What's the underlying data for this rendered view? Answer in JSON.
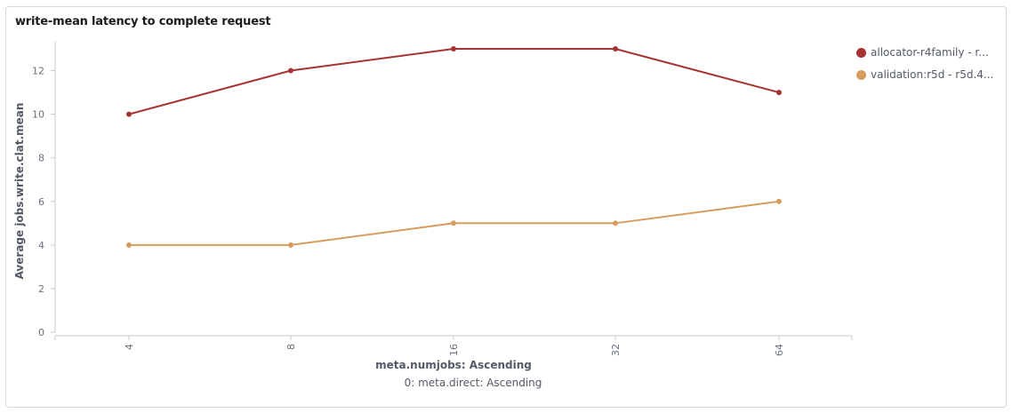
{
  "panel": {
    "title": "write-mean latency to complete request"
  },
  "chart_data": {
    "type": "line",
    "title": "write-mean latency to complete request",
    "xlabel": "meta.numjobs: Ascending",
    "xsublabel": "0: meta.direct: Ascending",
    "ylabel": "Average jobs.write.clat.mean",
    "categories": [
      "4",
      "8",
      "16",
      "32",
      "64"
    ],
    "ylim": [
      0,
      13
    ],
    "yticks": [
      0,
      2,
      4,
      6,
      8,
      10,
      12
    ],
    "grid": false,
    "legend_position": "right",
    "series": [
      {
        "name": "allocator-r4family - r...",
        "color": "#a83232",
        "values": [
          10,
          12,
          13,
          13,
          11
        ]
      },
      {
        "name": "validation:r5d - r5d.4...",
        "color": "#d69d5e",
        "values": [
          4,
          4,
          5,
          5,
          6
        ]
      }
    ]
  }
}
